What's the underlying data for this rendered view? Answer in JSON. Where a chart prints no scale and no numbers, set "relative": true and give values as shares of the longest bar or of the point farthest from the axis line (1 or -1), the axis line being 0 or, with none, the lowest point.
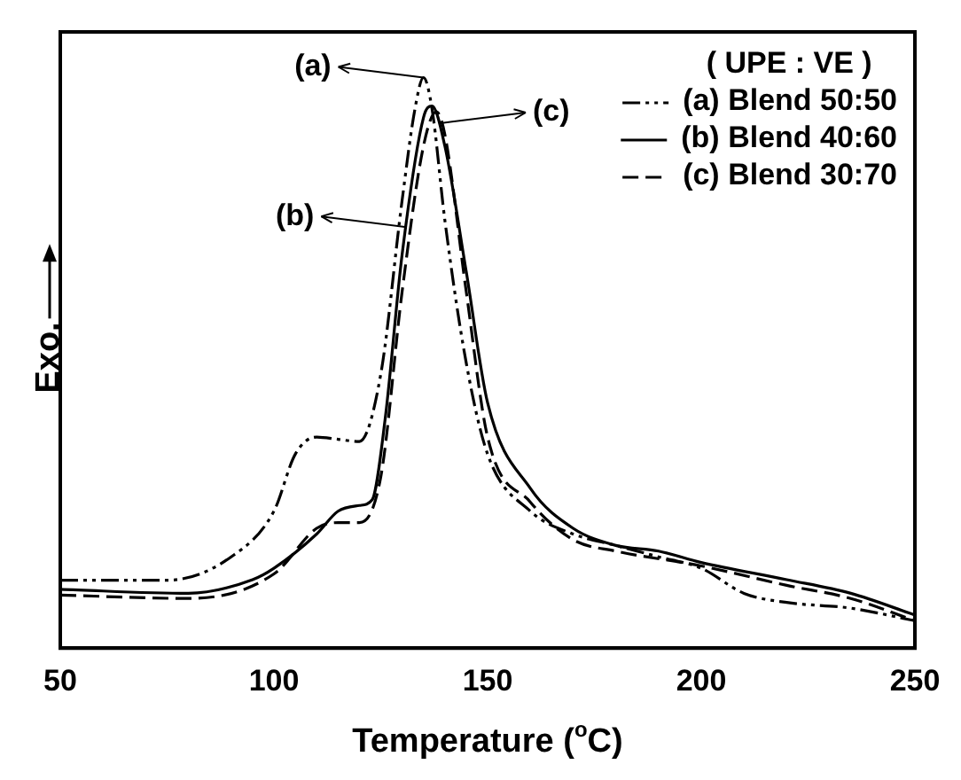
{
  "chart_data": {
    "type": "line",
    "relative": true,
    "xlabel": "Temperature ($^{o}$C)",
    "ylabel": "Exo.",
    "legend_title": "( UPE : VE )",
    "legend": "top right",
    "grid": false,
    "marker": "none",
    "xlim": [
      50,
      250
    ],
    "xticks": [
      50,
      100,
      150,
      200,
      250
    ],
    "series": [
      {
        "name": "(a) Blend 50:50",
        "color": "#000000",
        "line_style": "dotted",
        "x": [
          50,
          75,
          90,
          100,
          105,
          110,
          115,
          120,
          125,
          130,
          133,
          135,
          137,
          140,
          145,
          150,
          160,
          170,
          180,
          190,
          200,
          210,
          220,
          235,
          250
        ],
        "values": [
          0.119,
          0.119,
          0.16,
          0.24,
          0.34,
          0.37,
          0.366,
          0.362,
          0.48,
          0.785,
          0.945,
          1,
          0.945,
          0.75,
          0.5,
          0.34,
          0.24,
          0.2,
          0.18,
          0.16,
          0.14,
          0.096,
          0.08,
          0.07,
          0.048
        ]
      },
      {
        "name": "(b) Blend 40:60",
        "color": "#000000",
        "line_style": "solid",
        "x": [
          50,
          80,
          95,
          100,
          110,
          115,
          120,
          123,
          126,
          130,
          135,
          137,
          140,
          145,
          150,
          160,
          170,
          180,
          190,
          200,
          220,
          235,
          250
        ],
        "values": [
          0.103,
          0.096,
          0.12,
          0.14,
          0.2,
          0.24,
          0.25,
          0.26,
          0.4,
          0.69,
          0.93,
          0.95,
          0.88,
          0.66,
          0.43,
          0.28,
          0.21,
          0.18,
          0.17,
          0.15,
          0.12,
          0.096,
          0.058
        ]
      },
      {
        "name": "(c) Blend 30:70",
        "color": "#000000",
        "line_style": "dashed",
        "x": [
          50,
          80,
          100,
          110,
          115,
          120,
          125,
          130,
          135,
          138,
          140,
          145,
          150,
          160,
          170,
          180,
          200,
          220,
          235,
          250
        ],
        "values": [
          0.093,
          0.087,
          0.13,
          0.21,
          0.22,
          0.22,
          0.3,
          0.625,
          0.88,
          0.94,
          0.9,
          0.625,
          0.37,
          0.256,
          0.19,
          0.17,
          0.144,
          0.11,
          0.087,
          0.048
        ]
      }
    ],
    "annotations": [
      "(a)",
      "(b)",
      "(c)"
    ]
  }
}
